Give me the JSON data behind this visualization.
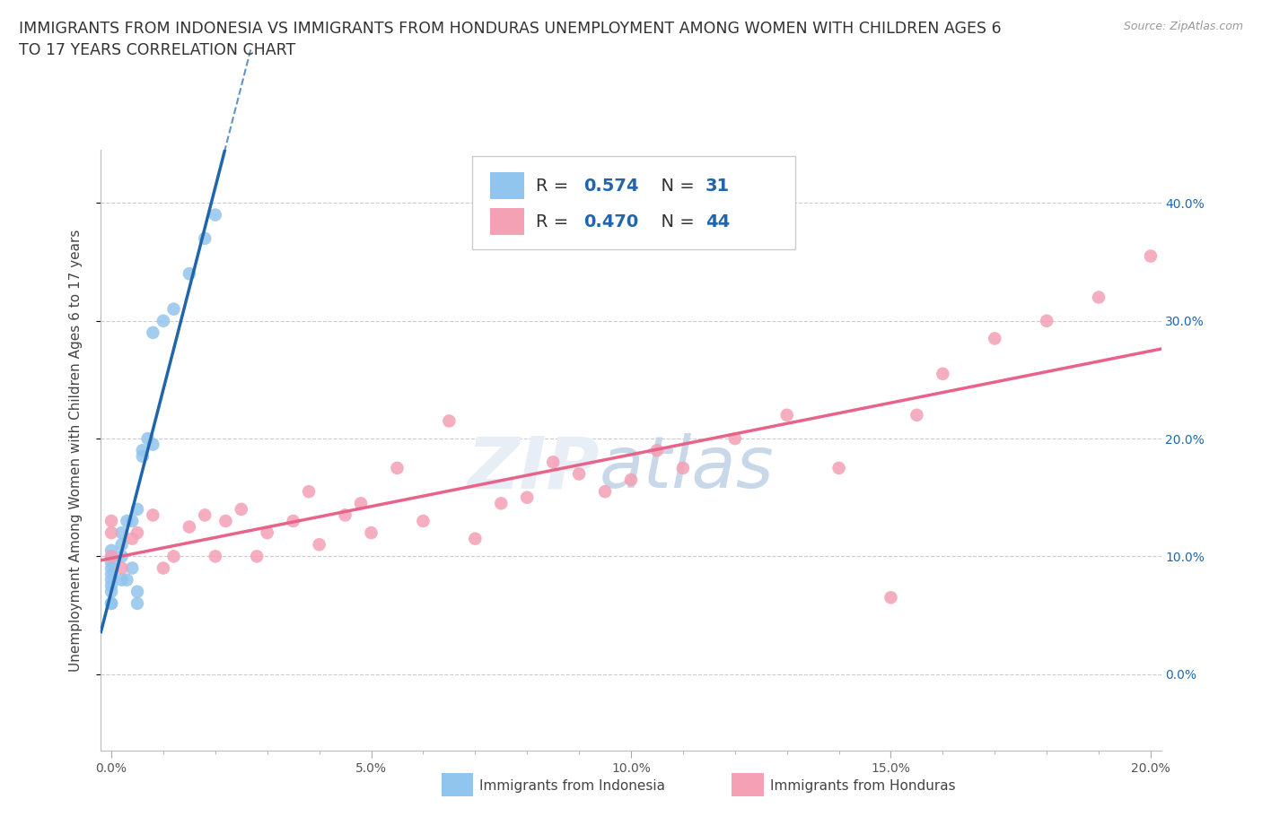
{
  "title": "IMMIGRANTS FROM INDONESIA VS IMMIGRANTS FROM HONDURAS UNEMPLOYMENT AMONG WOMEN WITH CHILDREN AGES 6\nTO 17 YEARS CORRELATION CHART",
  "source": "Source: ZipAtlas.com",
  "ylabel": "Unemployment Among Women with Children Ages 6 to 17 years",
  "xlim": [
    -0.002,
    0.202
  ],
  "ylim": [
    -0.065,
    0.445
  ],
  "xticks": [
    0.0,
    0.05,
    0.1,
    0.15,
    0.2
  ],
  "xtick_labels": [
    "0.0%",
    "5.0%",
    "10.0%",
    "15.0%",
    "20.0%"
  ],
  "yticks": [
    0.0,
    0.1,
    0.2,
    0.3,
    0.4
  ],
  "ytick_labels": [
    "0.0%",
    "10.0%",
    "20.0%",
    "30.0%",
    "40.0%"
  ],
  "indonesia_color": "#92C5ED",
  "honduras_color": "#F4A0B5",
  "indonesia_line_color": "#2166AC",
  "honduras_line_color": "#E8638A",
  "indonesia_R": 0.574,
  "indonesia_N": 31,
  "honduras_R": 0.47,
  "honduras_N": 44,
  "background_color": "#FFFFFF",
  "grid_color": "#CCCCCC",
  "title_fontsize": 12.5,
  "axis_label_fontsize": 11,
  "tick_fontsize": 10,
  "legend_fontsize": 14,
  "indonesia_x": [
    0.0,
    0.0,
    0.0,
    0.0,
    0.0,
    0.0,
    0.0,
    0.0,
    0.0,
    0.0,
    0.002,
    0.002,
    0.002,
    0.002,
    0.003,
    0.003,
    0.004,
    0.004,
    0.005,
    0.005,
    0.005,
    0.006,
    0.006,
    0.007,
    0.008,
    0.008,
    0.01,
    0.012,
    0.015,
    0.018,
    0.02
  ],
  "indonesia_y": [
    0.06,
    0.07,
    0.075,
    0.08,
    0.085,
    0.09,
    0.095,
    0.1,
    0.105,
    0.06,
    0.1,
    0.11,
    0.12,
    0.08,
    0.13,
    0.08,
    0.13,
    0.09,
    0.14,
    0.06,
    0.07,
    0.185,
    0.19,
    0.2,
    0.195,
    0.29,
    0.3,
    0.31,
    0.34,
    0.37,
    0.39
  ],
  "honduras_x": [
    0.0,
    0.0,
    0.0,
    0.002,
    0.004,
    0.005,
    0.008,
    0.01,
    0.012,
    0.015,
    0.018,
    0.02,
    0.022,
    0.025,
    0.028,
    0.03,
    0.035,
    0.038,
    0.04,
    0.045,
    0.048,
    0.05,
    0.055,
    0.06,
    0.065,
    0.07,
    0.075,
    0.08,
    0.085,
    0.09,
    0.095,
    0.1,
    0.105,
    0.11,
    0.12,
    0.13,
    0.14,
    0.15,
    0.155,
    0.16,
    0.17,
    0.18,
    0.19,
    0.2
  ],
  "honduras_y": [
    0.1,
    0.12,
    0.13,
    0.09,
    0.115,
    0.12,
    0.135,
    0.09,
    0.1,
    0.125,
    0.135,
    0.1,
    0.13,
    0.14,
    0.1,
    0.12,
    0.13,
    0.155,
    0.11,
    0.135,
    0.145,
    0.12,
    0.175,
    0.13,
    0.215,
    0.115,
    0.145,
    0.15,
    0.18,
    0.17,
    0.155,
    0.165,
    0.19,
    0.175,
    0.2,
    0.22,
    0.175,
    0.065,
    0.22,
    0.255,
    0.285,
    0.3,
    0.32,
    0.355
  ]
}
